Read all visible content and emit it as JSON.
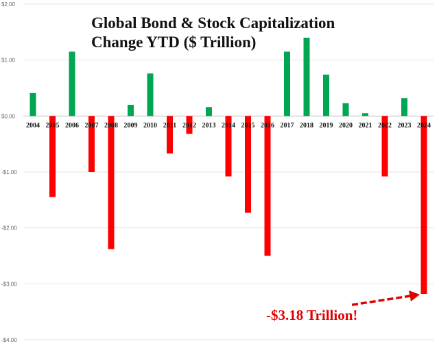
{
  "chart_data": {
    "type": "bar",
    "title": "Global Bond & Stock Capitalization Change YTD ($ Trillion)",
    "categories": [
      "2004",
      "2005",
      "2006",
      "2007",
      "2008",
      "2009",
      "2010",
      "2011",
      "2012",
      "2013",
      "2014",
      "2015",
      "2016",
      "2017",
      "2018",
      "2019",
      "2020",
      "2021",
      "2022",
      "2023",
      "2024"
    ],
    "values": [
      0.41,
      -1.45,
      1.15,
      -1.0,
      -2.38,
      0.2,
      0.76,
      -0.67,
      -0.32,
      0.16,
      -1.08,
      -1.73,
      -2.5,
      1.15,
      1.4,
      0.74,
      0.23,
      0.05,
      -1.08,
      0.32,
      -3.18
    ],
    "ylim": [
      -4,
      2
    ],
    "yticks": [
      2,
      1,
      0,
      -1,
      -2,
      -3,
      -4
    ],
    "ytick_labels": [
      "$2.00",
      "$1.00",
      "$0.00",
      "-$1.00",
      "-$2.00",
      "-$3.00",
      "-$4.00"
    ],
    "grid": true,
    "colors": {
      "positive": "#00a651",
      "negative": "#ff0000"
    },
    "annotation": "-$3.18 Trillion!"
  }
}
